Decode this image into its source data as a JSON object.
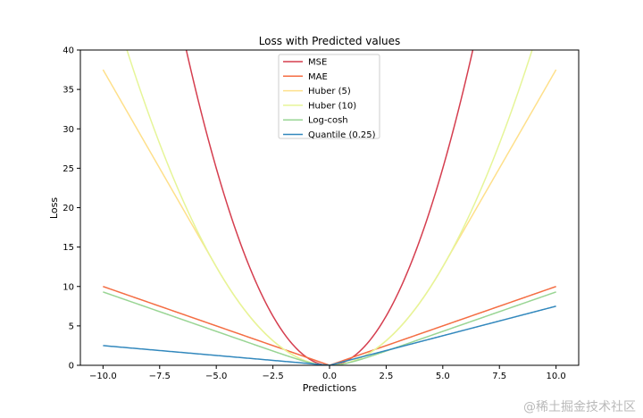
{
  "chart_data": {
    "type": "line",
    "title": "Loss with Predicted values",
    "xlabel": "Predictions",
    "ylabel": "Loss",
    "xlim": [
      -11.0,
      11.0
    ],
    "ylim": [
      0,
      40
    ],
    "x_ticks": [
      -10.0,
      -7.5,
      -5.0,
      -2.5,
      0.0,
      2.5,
      5.0,
      7.5,
      10.0
    ],
    "x_tick_labels": [
      "−10.0",
      "−7.5",
      "−5.0",
      "−2.5",
      "0.0",
      "2.5",
      "5.0",
      "7.5",
      "10.0"
    ],
    "y_ticks": [
      0,
      5,
      10,
      15,
      20,
      25,
      30,
      35,
      40
    ],
    "y_tick_labels": [
      "0",
      "5",
      "10",
      "15",
      "20",
      "25",
      "30",
      "35",
      "40"
    ],
    "x_range": [
      -10.0,
      10.0
    ],
    "grid": false,
    "legend_position": "top-center",
    "series": [
      {
        "name": "MSE",
        "function": "x^2",
        "color": "#d53e4f"
      },
      {
        "name": "MAE",
        "function": "|x|",
        "color": "#f46d43"
      },
      {
        "name": "Huber (5)",
        "delta": 5,
        "function": "huber",
        "color": "#fee08b"
      },
      {
        "name": "Huber (10)",
        "delta": 10,
        "function": "huber",
        "color": "#e6f598"
      },
      {
        "name": "Log-cosh",
        "function": "log(cosh(x))",
        "color": "#99d594"
      },
      {
        "name": "Quantile (0.25)",
        "quantile": 0.25,
        "function": "quantile",
        "color": "#3288bd"
      }
    ]
  },
  "watermark": "@稀土掘金技术社区"
}
